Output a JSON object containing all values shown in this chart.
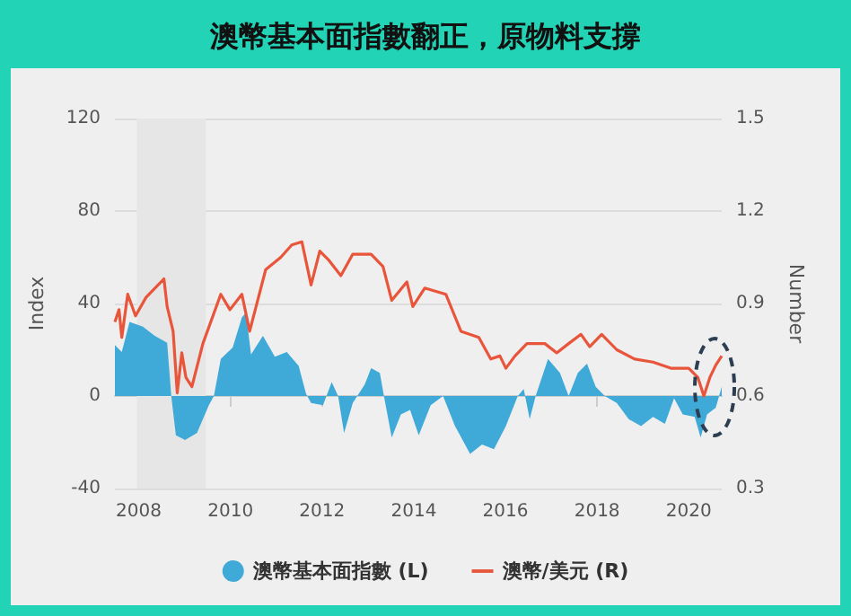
{
  "chart_data": {
    "type": "line",
    "title": "澳幣基本面指數翻正，原物料支撐",
    "ylabel": "Index",
    "y2label": "Number",
    "xlim": [
      2007.48,
      2020.72
    ],
    "xticks": [
      2008,
      2010,
      2012,
      2014,
      2016,
      2018,
      2020
    ],
    "ylim": [
      -40,
      120
    ],
    "yticks": [
      -40,
      0,
      40,
      80,
      120
    ],
    "y2lim": [
      0.3,
      1.5
    ],
    "y2ticks": [
      0.3,
      0.6,
      0.9,
      1.2,
      1.5
    ],
    "grid": "y",
    "legend": "bottom",
    "marker": "none",
    "bands": [
      {
        "axis": "x",
        "from": 2007.96,
        "to": 2009.46,
        "color": "#e6e6e6"
      }
    ],
    "series": [
      {
        "name": "澳幣基本面指數 (L)",
        "type": "area",
        "axis": "y",
        "color": "#3fa9d8",
        "x": [
          2007.48,
          2007.63,
          2007.8,
          2008.09,
          2008.35,
          2008.62,
          2008.71,
          2008.81,
          2009.01,
          2009.27,
          2009.53,
          2009.64,
          2009.79,
          2010.05,
          2010.25,
          2010.34,
          2010.45,
          2010.71,
          2010.97,
          2011.23,
          2011.49,
          2011.65,
          2011.76,
          2012.02,
          2012.21,
          2012.35,
          2012.48,
          2012.67,
          2012.93,
          2013.07,
          2013.26,
          2013.35,
          2013.52,
          2013.72,
          2013.92,
          2014.11,
          2014.37,
          2014.64,
          2014.9,
          2015.23,
          2015.49,
          2015.75,
          2016.01,
          2016.27,
          2016.4,
          2016.53,
          2016.66,
          2016.93,
          2017.19,
          2017.38,
          2017.58,
          2017.78,
          2017.97,
          2018.17,
          2018.43,
          2018.69,
          2018.96,
          2019.22,
          2019.48,
          2019.68,
          2019.87,
          2020.13,
          2020.26,
          2020.4,
          2020.59,
          2020.72
        ],
        "values": [
          22,
          19,
          32,
          30,
          26,
          23,
          0,
          -17,
          -19,
          -16,
          -4,
          0,
          16,
          21,
          34,
          36,
          18,
          26,
          17,
          19,
          13,
          1,
          -3,
          -4,
          6,
          0,
          -16,
          -3,
          5,
          12,
          10,
          0,
          -18,
          -8,
          -6,
          -17,
          -4,
          0,
          -13,
          -25,
          -21,
          -23,
          -13,
          0,
          3,
          -10,
          0,
          16,
          10,
          0,
          10,
          14,
          4,
          0,
          -3,
          -10,
          -13,
          -9,
          -12,
          -1,
          -8,
          -9,
          -18,
          -8,
          -5,
          4
        ]
      },
      {
        "name": "澳幣/美元 (R)",
        "axis": "y2",
        "color": "#e8553a",
        "x": [
          2007.48,
          2007.57,
          2007.63,
          2007.76,
          2007.93,
          2008.16,
          2008.55,
          2008.62,
          2008.75,
          2008.84,
          2008.94,
          2009.03,
          2009.16,
          2009.4,
          2009.79,
          2009.99,
          2010.25,
          2010.42,
          2010.77,
          2011.1,
          2011.34,
          2011.56,
          2011.76,
          2011.95,
          2012.15,
          2012.41,
          2012.67,
          2013.07,
          2013.33,
          2013.52,
          2013.85,
          2013.98,
          2014.24,
          2014.7,
          2015.03,
          2015.42,
          2015.68,
          2015.88,
          2016.01,
          2016.21,
          2016.47,
          2016.86,
          2017.12,
          2017.38,
          2017.65,
          2017.84,
          2018.1,
          2018.43,
          2018.82,
          2019.22,
          2019.61,
          2020.0,
          2020.2,
          2020.33,
          2020.46,
          2020.59,
          2020.72
        ],
        "values": [
          0.84,
          0.88,
          0.79,
          0.93,
          0.86,
          0.92,
          0.98,
          0.89,
          0.81,
          0.61,
          0.74,
          0.66,
          0.63,
          0.77,
          0.93,
          0.88,
          0.93,
          0.81,
          1.01,
          1.05,
          1.09,
          1.1,
          0.96,
          1.07,
          1.04,
          0.99,
          1.06,
          1.06,
          1.02,
          0.91,
          0.97,
          0.89,
          0.95,
          0.93,
          0.81,
          0.79,
          0.72,
          0.73,
          0.69,
          0.73,
          0.77,
          0.77,
          0.74,
          0.77,
          0.8,
          0.76,
          0.8,
          0.75,
          0.72,
          0.71,
          0.69,
          0.69,
          0.66,
          0.6,
          0.66,
          0.7,
          0.73
        ]
      }
    ]
  }
}
